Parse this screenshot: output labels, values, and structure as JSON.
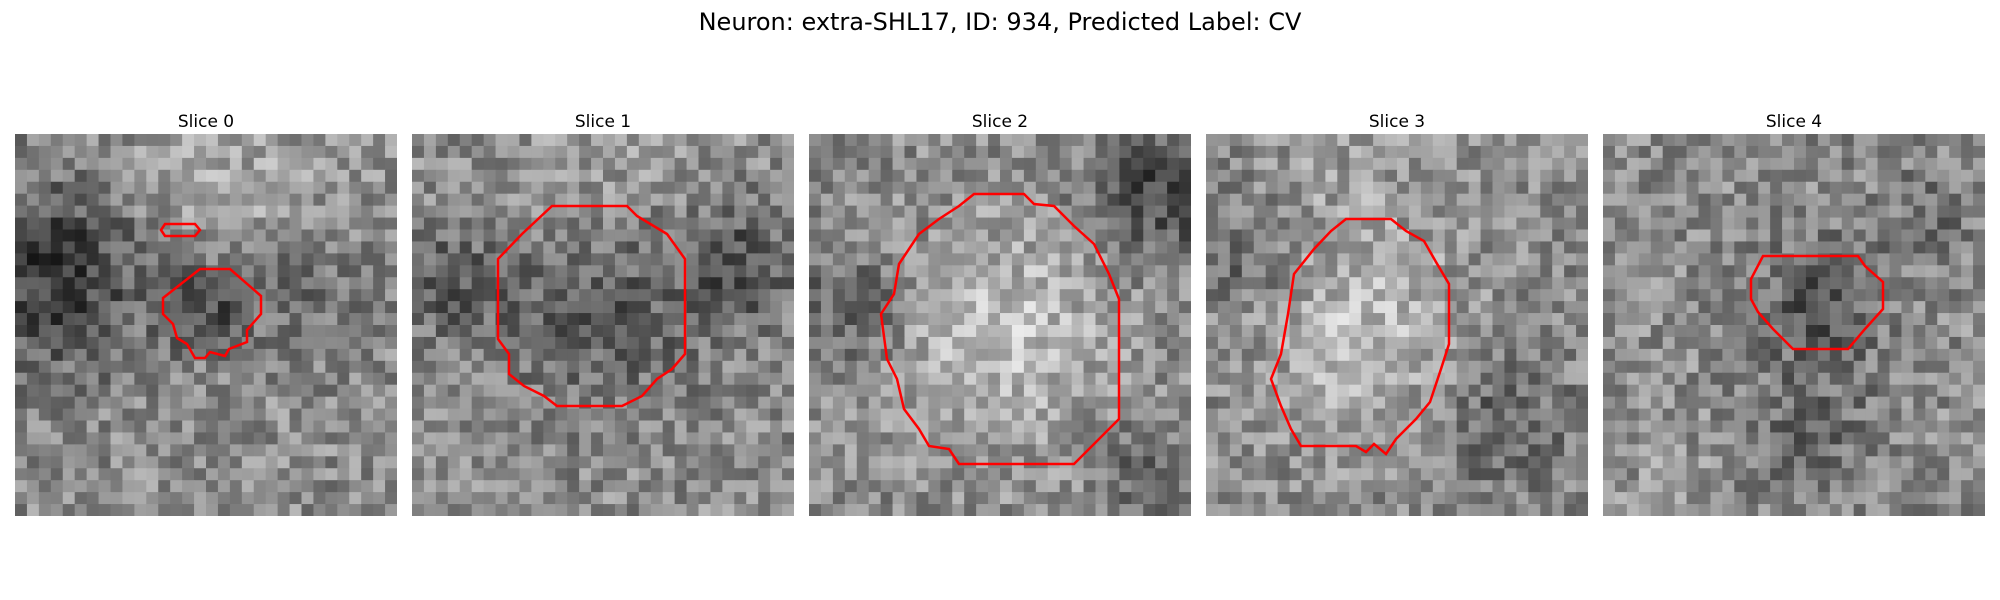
{
  "figure": {
    "title": "Neuron: extra-SHL17, ID: 934, Predicted Label: CV"
  },
  "colors": {
    "contour": "#ff0000",
    "background": "#ffffff"
  },
  "slices": [
    {
      "title": "Slice 0"
    },
    {
      "title": "Slice 1"
    },
    {
      "title": "Slice 2"
    },
    {
      "title": "Slice 3"
    },
    {
      "title": "Slice 4"
    }
  ]
}
